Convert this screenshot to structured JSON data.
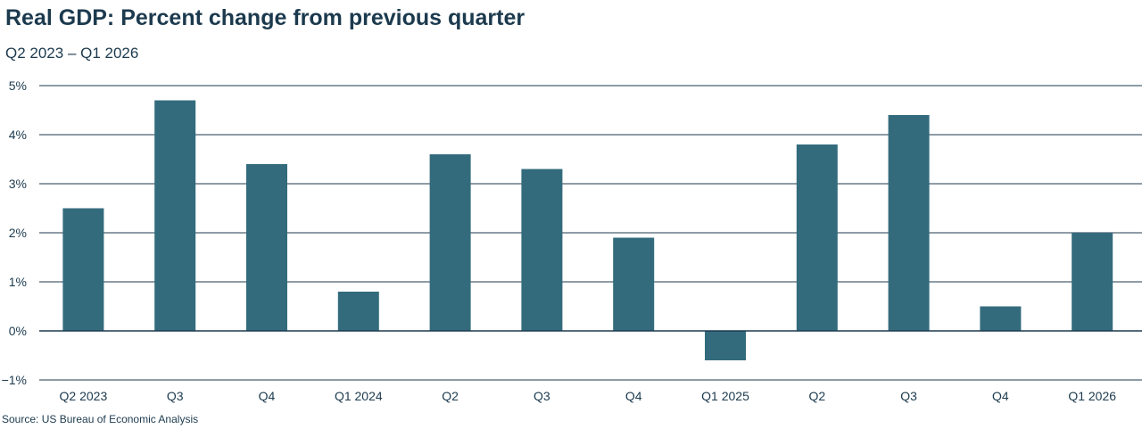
{
  "header": {
    "title": "Real GDP: Percent change from previous quarter",
    "subtitle": "Q2 2023 – Q1 2026"
  },
  "footer": {
    "source": "Source: US Bureau of Economic Analysis"
  },
  "colors": {
    "bar": "#336b7d",
    "grid": "#1c3a4e",
    "text": "#1c3a4e"
  },
  "chart_data": {
    "type": "bar",
    "title": "Real GDP: Percent change from previous quarter",
    "subtitle": "Q2 2023 – Q1 2026",
    "xlabel": "",
    "ylabel": "",
    "categories": [
      "Q2 2023",
      "Q3",
      "Q4",
      "Q1 2024",
      "Q2",
      "Q3",
      "Q4",
      "Q1 2025",
      "Q2",
      "Q3",
      "Q4",
      "Q1 2026"
    ],
    "values": [
      2.5,
      4.7,
      3.4,
      0.8,
      3.6,
      3.3,
      1.9,
      -0.6,
      3.8,
      4.4,
      0.5,
      2.0
    ],
    "ylim": [
      -1,
      5
    ],
    "yticks": [
      5,
      4,
      3,
      2,
      1,
      0,
      -1
    ],
    "ytick_labels": [
      "5%",
      "4%",
      "3%",
      "2%",
      "1%",
      "0%",
      "−1%"
    ],
    "grid": true,
    "legend": "none",
    "source": "Source: US Bureau of Economic Analysis"
  }
}
